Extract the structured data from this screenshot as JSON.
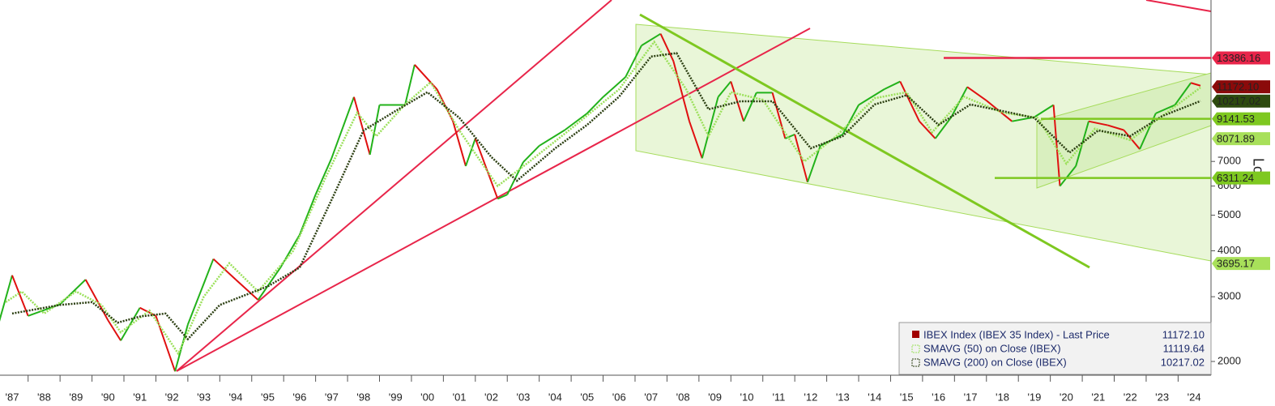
{
  "chart_data": {
    "type": "line",
    "log": true,
    "scale_label": "Log",
    "xlim": [
      1987.12,
      2025.03
    ],
    "ylim": [
      1835,
      19240
    ],
    "yticks": [
      2000,
      3000,
      4000,
      5000,
      6000,
      7000
    ],
    "xticks": [
      {
        "value": 1987.5,
        "label": "'87"
      },
      {
        "value": 1988.5,
        "label": "'88"
      },
      {
        "value": 1989.5,
        "label": "'89"
      },
      {
        "value": 1990.5,
        "label": "'90"
      },
      {
        "value": 1991.5,
        "label": "'91"
      },
      {
        "value": 1992.5,
        "label": "'92"
      },
      {
        "value": 1993.5,
        "label": "'93"
      },
      {
        "value": 1994.5,
        "label": "'94"
      },
      {
        "value": 1995.5,
        "label": "'95"
      },
      {
        "value": 1996.5,
        "label": "'96"
      },
      {
        "value": 1997.5,
        "label": "'97"
      },
      {
        "value": 1998.5,
        "label": "'98"
      },
      {
        "value": 1999.5,
        "label": "'99"
      },
      {
        "value": 2000.5,
        "label": "'00"
      },
      {
        "value": 2001.5,
        "label": "'01"
      },
      {
        "value": 2002.5,
        "label": "'02"
      },
      {
        "value": 2003.5,
        "label": "'03"
      },
      {
        "value": 2004.5,
        "label": "'04"
      },
      {
        "value": 2005.5,
        "label": "'05"
      },
      {
        "value": 2006.5,
        "label": "'06"
      },
      {
        "value": 2007.5,
        "label": "'07"
      },
      {
        "value": 2008.5,
        "label": "'08"
      },
      {
        "value": 2009.5,
        "label": "'09"
      },
      {
        "value": 2010.5,
        "label": "'10"
      },
      {
        "value": 2011.5,
        "label": "'11"
      },
      {
        "value": 2012.5,
        "label": "'12"
      },
      {
        "value": 2013.5,
        "label": "'13"
      },
      {
        "value": 2014.5,
        "label": "'14"
      },
      {
        "value": 2015.5,
        "label": "'15"
      },
      {
        "value": 2016.5,
        "label": "'16"
      },
      {
        "value": 2017.5,
        "label": "'17"
      },
      {
        "value": 2018.5,
        "label": "'18"
      },
      {
        "value": 2019.5,
        "label": "'19"
      },
      {
        "value": 2020.5,
        "label": "'20"
      },
      {
        "value": 2021.5,
        "label": "'21"
      },
      {
        "value": 2022.5,
        "label": "'22"
      },
      {
        "value": 2023.5,
        "label": "'23"
      },
      {
        "value": 2024.5,
        "label": "'24"
      }
    ],
    "series": [
      {
        "name": "IBEX Index (IBEX 35 Index) - Last Price",
        "color": "#a00000",
        "up_color": "#22b21a",
        "down_color": "#e01010",
        "last": {
          "value": 11172.1,
          "label": "11172.10"
        },
        "x": [
          1987.0,
          1987.5,
          1988.0,
          1989.0,
          1989.8,
          1990.5,
          1990.9,
          1991.5,
          1992.0,
          1992.6,
          1993.0,
          1993.8,
          1994.5,
          1995.2,
          1995.9,
          1996.5,
          1997.0,
          1997.5,
          1998.2,
          1998.7,
          1999.0,
          1999.8,
          2000.1,
          2000.8,
          2001.3,
          2001.7,
          2002.0,
          2002.7,
          2003.0,
          2003.5,
          2004.0,
          2004.8,
          2005.5,
          2006.0,
          2006.7,
          2007.2,
          2007.8,
          2008.2,
          2008.7,
          2009.1,
          2009.6,
          2010.0,
          2010.4,
          2010.8,
          2011.3,
          2011.7,
          2012.0,
          2012.4,
          2012.8,
          2013.5,
          2014.0,
          2014.8,
          2015.3,
          2015.9,
          2016.4,
          2016.9,
          2017.4,
          2018.0,
          2018.8,
          2019.5,
          2020.1,
          2020.3,
          2020.8,
          2021.2,
          2021.8,
          2022.3,
          2022.8,
          2023.3,
          2023.9,
          2024.4,
          2024.7
        ],
        "values": [
          2400,
          3430,
          2660,
          2860,
          3340,
          2590,
          2280,
          2800,
          2660,
          1880,
          2520,
          3800,
          3340,
          2940,
          3600,
          4420,
          5690,
          7140,
          10480,
          7300,
          9970,
          9970,
          12830,
          11000,
          9000,
          6800,
          8080,
          5540,
          5690,
          6970,
          7720,
          8520,
          9460,
          10480,
          11870,
          14460,
          15570,
          13130,
          9000,
          7140,
          10480,
          11550,
          9000,
          10770,
          10770,
          8080,
          8290,
          6150,
          7720,
          8290,
          9970,
          11000,
          11550,
          9000,
          8080,
          9240,
          11160,
          10250,
          9000,
          9240,
          9970,
          6000,
          6800,
          9000,
          8780,
          8520,
          7560,
          9460,
          9970,
          11450,
          11250
        ]
      },
      {
        "name": "SMAVG (50)  on Close (IBEX)",
        "color": "#9be05a",
        "last": 11119.64,
        "x": [
          1987.3,
          1987.8,
          1988.5,
          1989.5,
          1990.3,
          1990.9,
          1991.8,
          1992.7,
          1993.5,
          1994.3,
          1995.2,
          1996.3,
          1997.3,
          1998.3,
          1998.9,
          1999.8,
          2000.6,
          2001.5,
          2002.7,
          2003.7,
          2005.0,
          2006.5,
          2007.6,
          2008.6,
          2009.3,
          2010.0,
          2011.0,
          2012.3,
          2013.3,
          2014.5,
          2015.5,
          2016.3,
          2017.3,
          2018.5,
          2019.6,
          2020.5,
          2021.4,
          2022.5,
          2023.5,
          2024.7
        ],
        "values": [
          2900,
          3100,
          2700,
          3100,
          2850,
          2400,
          2750,
          2100,
          3000,
          3700,
          3100,
          4000,
          6300,
          9500,
          8200,
          10000,
          11500,
          8500,
          6000,
          7000,
          8600,
          11000,
          14800,
          11000,
          8200,
          10800,
          10300,
          7000,
          8200,
          10400,
          10800,
          8400,
          10500,
          9500,
          9200,
          6900,
          8600,
          8000,
          9300,
          11119.64
        ]
      },
      {
        "name": "SMAVG (200)  on Close (IBEX)",
        "color": "#2c3f12",
        "last": 10217.02,
        "x": [
          1987.5,
          1989.0,
          1990.0,
          1990.8,
          1991.5,
          1992.3,
          1993.0,
          1994.0,
          1995.5,
          1996.5,
          1997.5,
          1998.5,
          1999.5,
          2000.5,
          2001.5,
          2002.5,
          2003.3,
          2004.5,
          2005.5,
          2006.5,
          2007.5,
          2008.3,
          2009.3,
          2010.3,
          2011.3,
          2012.5,
          2013.5,
          2014.5,
          2015.5,
          2016.5,
          2017.5,
          2018.5,
          2019.5,
          2020.6,
          2021.5,
          2022.5,
          2023.5,
          2024.7
        ],
        "values": [
          2700,
          2850,
          2900,
          2550,
          2650,
          2700,
          2300,
          2850,
          3200,
          3600,
          5500,
          8500,
          9600,
          10800,
          9200,
          7200,
          6200,
          7600,
          8800,
          10500,
          13500,
          13800,
          9700,
          10200,
          10200,
          7600,
          8200,
          10000,
          10600,
          8800,
          10000,
          9600,
          9200,
          7400,
          8500,
          8200,
          9300,
          10217.02
        ]
      }
    ],
    "levels": [
      {
        "value": 13386.16,
        "color": "#e8254a",
        "text_color": "#ffffff"
      },
      {
        "value": {
          "value": 11172.1,
          "label": "11172.10"
        },
        "color": "#8b0a0a",
        "text_color": "#ffffff"
      },
      {
        "value": 10217.02,
        "color": "#2d4a0e",
        "text_color": "#ffffff"
      },
      {
        "value": 9141.53,
        "color": "#7ec820",
        "text_color": "#111111"
      },
      {
        "value": 8071.89,
        "color": "#a8e05a",
        "text_color": "#111111"
      },
      {
        "value": 6311.24,
        "color": "#7ec820",
        "text_color": "#111111"
      },
      {
        "value": 3695.17,
        "color": "#a8e05a",
        "text_color": "#111111"
      }
    ]
  }
}
